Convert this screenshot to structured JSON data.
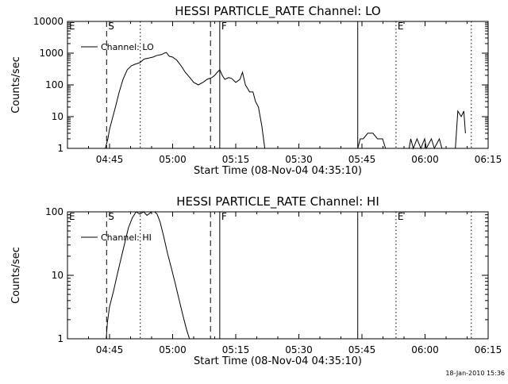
{
  "footer": {
    "timestamp": "18-Jan-2010 15:36"
  },
  "chart_data": [
    {
      "type": "line",
      "title": "HESSI PARTICLE_RATE Channel: LO",
      "xlabel": "Start Time (08-Nov-04 04:35:10)",
      "ylabel": "Counts/sec",
      "y_scale": "log",
      "xlim": [
        "04:35",
        "06:15"
      ],
      "ylim": [
        1,
        10000
      ],
      "x_ticks": [
        "04:45",
        "05:00",
        "05:15",
        "05:30",
        "05:45",
        "06:00",
        "06:15"
      ],
      "y_ticks": [
        "1",
        "10",
        "100",
        "1000",
        "10000"
      ],
      "legend": {
        "position": "top-left",
        "entries": [
          "Channel: LO"
        ]
      },
      "series": [
        {
          "name": "Channel: LO",
          "segments": [
            [
              [
                "04:44.0",
                1
              ],
              [
                "04:44.6",
                2
              ],
              [
                "04:45.0",
                4
              ],
              [
                "04:45.6",
                8
              ],
              [
                "04:46.4",
                20
              ],
              [
                "04:47.3",
                60
              ],
              [
                "04:48.2",
                150
              ],
              [
                "04:49.2",
                300
              ],
              [
                "04:50.2",
                400
              ],
              [
                "04:51.1",
                450
              ],
              [
                "04:52.2",
                500
              ],
              [
                "04:53.2",
                650
              ],
              [
                "04:54.3",
                700
              ],
              [
                "04:55.3",
                750
              ],
              [
                "04:56.3",
                850
              ],
              [
                "04:57.4",
                900
              ],
              [
                "04:58.0",
                1000
              ],
              [
                "04:58.5",
                1050
              ],
              [
                "04:59.2",
                800
              ],
              [
                "05:00.0",
                750
              ],
              [
                "05:01.0",
                600
              ],
              [
                "05:02.0",
                400
              ],
              [
                "05:03.0",
                250
              ],
              [
                "05:04.1",
                170
              ],
              [
                "05:05.0",
                120
              ],
              [
                "05:06.1",
                100
              ],
              [
                "05:07.2",
                120
              ],
              [
                "05:08.2",
                150
              ],
              [
                "05:09.3",
                170
              ],
              [
                "05:10.0",
                200
              ],
              [
                "05:10.6",
                250
              ],
              [
                "05:11.2",
                300
              ],
              [
                "05:11.8",
                200
              ],
              [
                "05:12.4",
                150
              ],
              [
                "05:13.3",
                170
              ],
              [
                "05:14.0",
                160
              ],
              [
                "05:15.0",
                120
              ],
              [
                "05:16.0",
                150
              ],
              [
                "05:16.6",
                250
              ],
              [
                "05:17.3",
                100
              ],
              [
                "05:18.3",
                60
              ],
              [
                "05:19.1",
                60
              ],
              [
                "05:19.7",
                30
              ],
              [
                "05:20.4",
                20
              ],
              [
                "05:21.2",
                5
              ],
              [
                "05:21.9",
                1
              ]
            ],
            [
              [
                "05:44.0",
                1
              ],
              [
                "05:44.6",
                2
              ],
              [
                "05:45.3",
                2
              ],
              [
                "05:46.4",
                3
              ],
              [
                "05:47.6",
                3
              ],
              [
                "05:48.7",
                2
              ],
              [
                "05:49.9",
                2
              ],
              [
                "05:50.6",
                1
              ]
            ],
            [
              [
                "05:56.2",
                1
              ],
              [
                "05:56.6",
                2
              ],
              [
                "05:57.2",
                1
              ],
              [
                "05:58.1",
                2
              ],
              [
                "05:59.0",
                1
              ],
              [
                "05:59.9",
                2
              ],
              [
                "06:00.3",
                1
              ],
              [
                "06:01.5",
                2
              ],
              [
                "06:02.2",
                1
              ],
              [
                "06:03.4",
                2
              ],
              [
                "06:04.0",
                1
              ]
            ],
            [
              [
                "06:07.2",
                1
              ],
              [
                "06:07.8",
                15
              ],
              [
                "06:08.6",
                10
              ],
              [
                "06:09.2",
                15
              ],
              [
                "06:09.6",
                3
              ]
            ]
          ]
        }
      ],
      "markers": [
        {
          "label": "E",
          "time": "04:35",
          "style": "none"
        },
        {
          "label": "S",
          "time": "04:44.3",
          "style": "dashed"
        },
        {
          "label": "",
          "time": "04:52.3",
          "style": "dotted"
        },
        {
          "label": "",
          "time": "05:09.0",
          "style": "dashed"
        },
        {
          "label": "F",
          "time": "05:11.2",
          "style": "solid"
        },
        {
          "label": "",
          "time": "05:44.0",
          "style": "solid"
        },
        {
          "label": "E",
          "time": "05:53.1",
          "style": "dotted"
        },
        {
          "label": "",
          "time": "06:11.0",
          "style": "dotted"
        }
      ]
    },
    {
      "type": "line",
      "title": "HESSI PARTICLE_RATE Channel: HI",
      "xlabel": "Start Time (08-Nov-04 04:35:10)",
      "ylabel": "Counts/sec",
      "y_scale": "log",
      "xlim": [
        "04:35",
        "06:15"
      ],
      "ylim": [
        1,
        100
      ],
      "x_ticks": [
        "04:45",
        "05:00",
        "05:15",
        "05:30",
        "05:45",
        "06:00",
        "06:15"
      ],
      "y_ticks": [
        "1",
        "10",
        "100"
      ],
      "legend": {
        "position": "top-left",
        "entries": [
          "Channel: HI"
        ]
      },
      "series": [
        {
          "name": "Channel: HI",
          "segments": [
            [
              [
                "04:44.2",
                1
              ],
              [
                "04:44.5",
                1.8
              ],
              [
                "04:45.0",
                3.2
              ],
              [
                "04:45.9",
                5.5
              ],
              [
                "04:46.8",
                10
              ],
              [
                "04:47.7",
                18
              ],
              [
                "04:48.6",
                32
              ],
              [
                "04:49.5",
                56
              ],
              [
                "04:50.4",
                80
              ],
              [
                "04:51.3",
                100
              ],
              [
                "04:52.2",
                92
              ],
              [
                "04:53.1",
                100
              ],
              [
                "04:53.9",
                88
              ],
              [
                "04:55.0",
                100
              ],
              [
                "04:55.7",
                100
              ],
              [
                "04:56.3",
                92
              ],
              [
                "04:57.0",
                70
              ],
              [
                "04:57.9",
                40
              ],
              [
                "04:58.8",
                22
              ],
              [
                "04:59.7",
                13
              ],
              [
                "05:00.6",
                7.5
              ],
              [
                "05:01.5",
                4.2
              ],
              [
                "05:02.4",
                2.4
              ],
              [
                "05:03.3",
                1.4
              ],
              [
                "05:04.0",
                1
              ]
            ]
          ]
        }
      ],
      "markers": [
        {
          "label": "E",
          "time": "04:35",
          "style": "none"
        },
        {
          "label": "S",
          "time": "04:44.3",
          "style": "dashed"
        },
        {
          "label": "",
          "time": "04:52.3",
          "style": "dotted"
        },
        {
          "label": "",
          "time": "05:09.0",
          "style": "dashed"
        },
        {
          "label": "F",
          "time": "05:11.2",
          "style": "solid"
        },
        {
          "label": "",
          "time": "05:44.0",
          "style": "solid"
        },
        {
          "label": "E",
          "time": "05:53.1",
          "style": "dotted"
        },
        {
          "label": "",
          "time": "06:11.0",
          "style": "dotted"
        }
      ]
    }
  ]
}
